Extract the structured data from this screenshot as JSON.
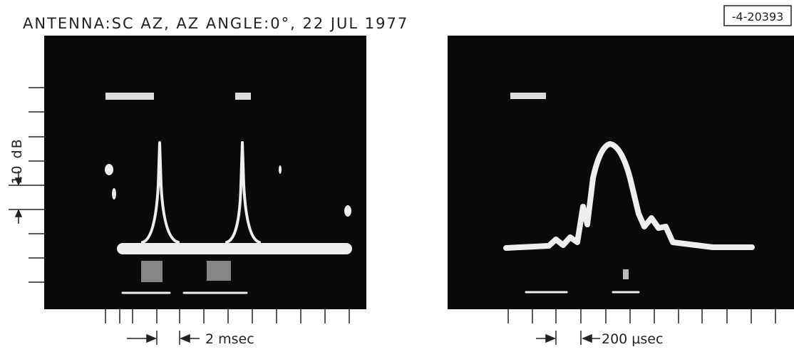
{
  "header": {
    "title": "ANTENNA:SC AZ,  AZ ANGLE:0°,  22 JUL 1977",
    "figure_id": "-4-20393"
  },
  "panels": [
    {
      "vertical_scale": "10 dB",
      "time_scale": "2 msec"
    },
    {
      "time_scale": "200 µsec"
    }
  ]
}
